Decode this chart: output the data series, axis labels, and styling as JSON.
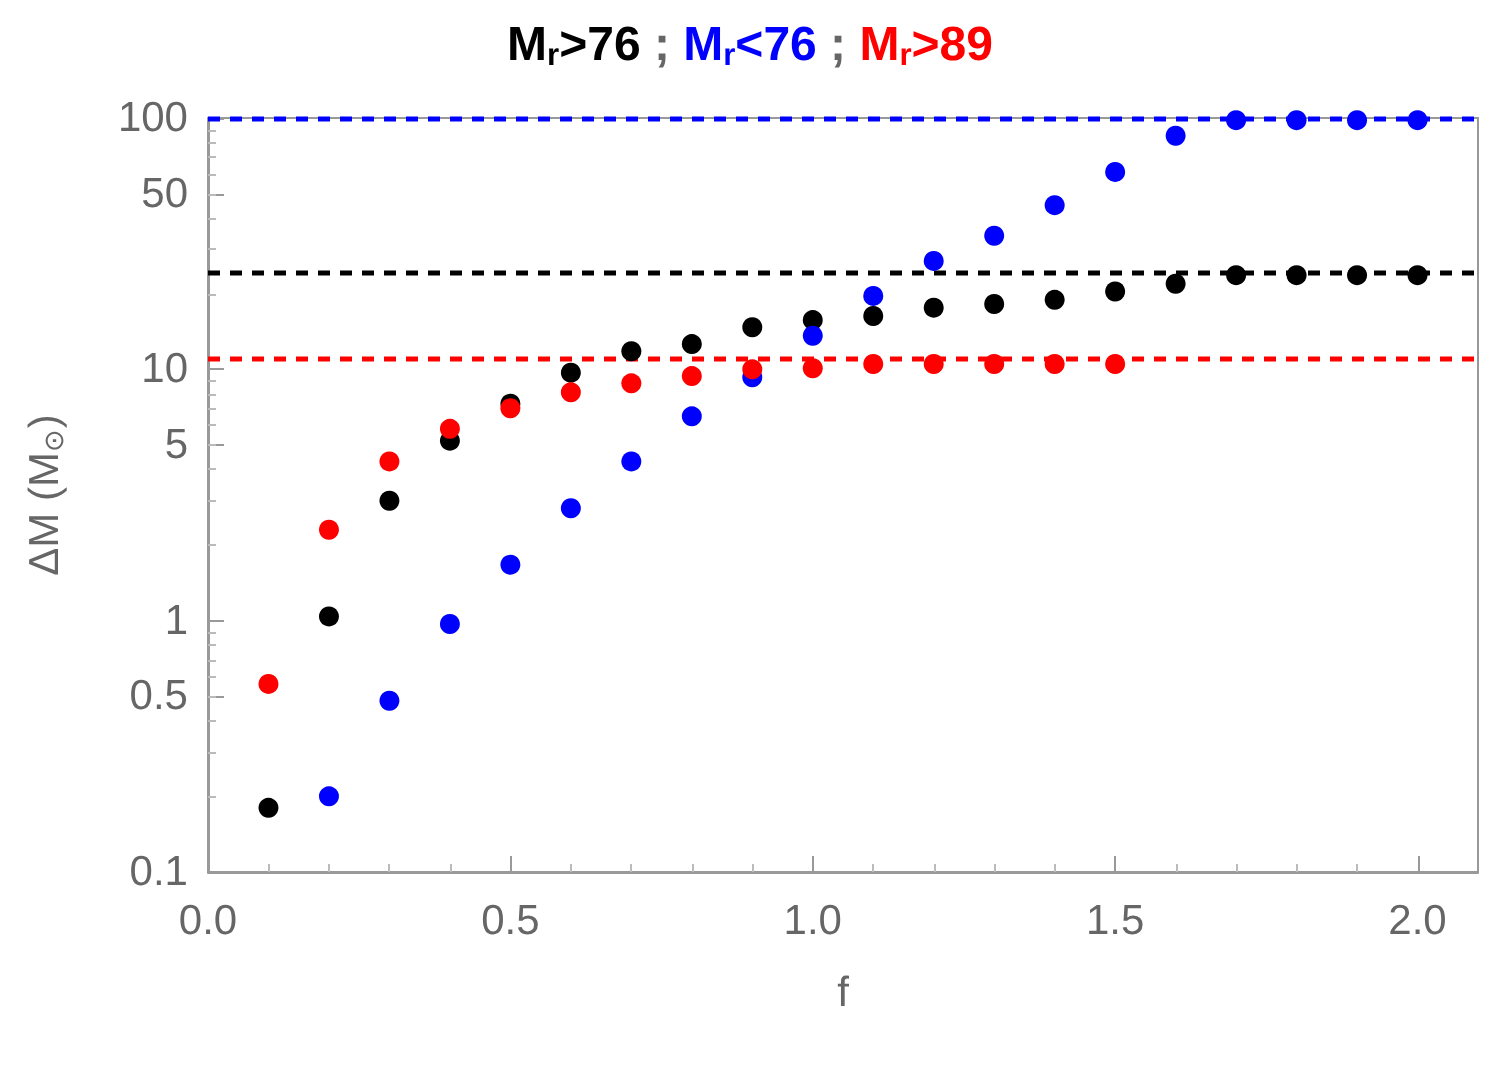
{
  "chart_data": {
    "type": "scatter",
    "title": "M$_{r}$>76 ; M$_{r}$<76 ; M$_{r}$>89",
    "xlabel": "f",
    "ylabel": "ΔM (M$_{⊙}$)",
    "x": [
      0.1,
      0.2,
      0.3,
      0.4,
      0.5,
      0.6,
      0.7,
      0.8,
      0.9,
      1.0,
      1.1,
      1.2,
      1.3,
      1.4,
      1.5,
      1.6,
      1.7,
      1.8,
      1.9,
      2.0
    ],
    "series": [
      {
        "color": "#000000",
        "values": [
          0.18,
          1.04,
          3.0,
          5.2,
          7.3,
          9.7,
          11.8,
          12.6,
          14.7,
          15.7,
          16.3,
          17.6,
          18.2,
          18.9,
          20.4,
          21.9,
          23.7,
          23.7,
          23.7,
          23.7
        ]
      },
      {
        "color": "#0000ff",
        "values": [
          null,
          0.2,
          0.48,
          0.97,
          1.67,
          2.8,
          4.3,
          6.5,
          9.3,
          13.6,
          19.6,
          27,
          34,
          45,
          61,
          85,
          98,
          98,
          98,
          98
        ]
      },
      {
        "color": "#ff0000",
        "values": [
          0.56,
          2.3,
          4.3,
          5.8,
          7.0,
          8.1,
          8.8,
          9.4,
          10.0,
          10.1,
          10.5,
          10.5,
          10.5,
          10.5,
          10.5,
          null,
          null,
          null,
          null,
          null
        ]
      }
    ],
    "ref_lines": [
      {
        "axis": "y",
        "value": 100,
        "color": "#0000ff",
        "line_style": "dashed"
      },
      {
        "axis": "y",
        "value": 24.4,
        "color": "#000000",
        "line_style": "dashed"
      },
      {
        "axis": "y",
        "value": 11,
        "color": "#ff0000",
        "line_style": "dashed"
      }
    ],
    "xlim": [
      0,
      2.1
    ],
    "xticks": [
      {
        "value": 0,
        "label": "0.0"
      },
      0.5,
      {
        "value": 1,
        "label": "1.0"
      },
      1.5,
      {
        "value": 2,
        "label": "2.0"
      }
    ],
    "ylim": [
      0.1,
      100
    ],
    "yticks": [
      0.1,
      0.5,
      1,
      5,
      10,
      50,
      100
    ],
    "log": "y",
    "marker": "circle",
    "grid": false
  }
}
